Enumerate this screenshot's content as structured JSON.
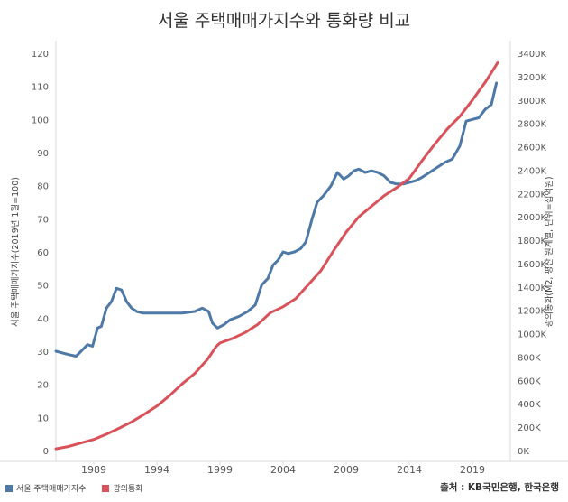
{
  "chart_data": {
    "type": "line",
    "title": "서울 주택매매가지수와 통화량 비교",
    "ylabel_left": "서울 주택매매가지수(2019년 1월=100)",
    "ylabel_right": "광의통화(M2, 평잔 원계열, 단위=십억원)",
    "x_ticks": [
      "1989",
      "1994",
      "1999",
      "2004",
      "2009",
      "2014",
      "2019"
    ],
    "x_range": [
      1986,
      2022
    ],
    "y_left_ticks": [
      "0",
      "10",
      "20",
      "30",
      "40",
      "50",
      "60",
      "70",
      "80",
      "90",
      "100",
      "110",
      "120"
    ],
    "y_left_range": [
      0,
      120
    ],
    "y_right_ticks": [
      "0K",
      "200K",
      "400K",
      "600K",
      "800K",
      "1000K",
      "1200K",
      "1400K",
      "1600K",
      "1800K",
      "2000K",
      "2200K",
      "2400K",
      "2600K",
      "2800K",
      "3000K",
      "3200K",
      "3400K"
    ],
    "y_right_range": [
      0,
      3400000
    ],
    "series": [
      {
        "name": "서울 주택매매가지수",
        "axis": "left",
        "color": "#4e79a7",
        "x": [
          1986.0,
          1987.0,
          1987.6,
          1988.0,
          1988.5,
          1988.9,
          1989.3,
          1989.6,
          1990.0,
          1990.4,
          1990.8,
          1991.2,
          1991.6,
          1992.0,
          1992.4,
          1992.9,
          1993.5,
          1994.2,
          1995.0,
          1996.0,
          1997.0,
          1997.6,
          1998.1,
          1998.4,
          1998.8,
          1999.3,
          1999.8,
          2000.5,
          2001.2,
          2001.8,
          2002.3,
          2002.8,
          2003.2,
          2003.6,
          2004.0,
          2004.4,
          2004.9,
          2005.4,
          2005.8,
          2006.3,
          2006.7,
          2007.2,
          2007.8,
          2008.3,
          2008.8,
          2009.2,
          2009.6,
          2010.0,
          2010.5,
          2011.0,
          2011.5,
          2012.0,
          2012.5,
          2013.0,
          2013.5,
          2014.0,
          2014.5,
          2015.0,
          2015.6,
          2016.2,
          2016.8,
          2017.4,
          2018.0,
          2018.5,
          2019.0,
          2019.5,
          2020.0,
          2020.5,
          2020.9
        ],
        "y": [
          30.0,
          29.0,
          28.5,
          30.0,
          32.0,
          31.5,
          37.0,
          37.5,
          43.0,
          45.0,
          49.0,
          48.5,
          45.0,
          43.0,
          42.0,
          41.5,
          41.5,
          41.5,
          41.5,
          41.5,
          42.0,
          43.0,
          42.0,
          38.5,
          37.0,
          38.0,
          39.5,
          40.5,
          42.0,
          44.0,
          50.0,
          52.0,
          56.0,
          57.5,
          60.0,
          59.5,
          60.0,
          61.0,
          63.0,
          70.0,
          75.0,
          77.0,
          80.0,
          84.0,
          82.0,
          83.0,
          84.5,
          85.0,
          84.0,
          84.5,
          84.0,
          83.0,
          81.0,
          80.5,
          80.5,
          81.0,
          81.5,
          82.5,
          84.0,
          85.5,
          87.0,
          88.0,
          92.0,
          99.5,
          100.0,
          100.5,
          103.0,
          104.5,
          111.0
        ]
      },
      {
        "name": "광의통화",
        "axis": "right",
        "color": "#d9525a",
        "x": [
          1986.0,
          1987.0,
          1988.0,
          1989.0,
          1990.0,
          1991.0,
          1992.0,
          1993.0,
          1994.0,
          1995.0,
          1996.0,
          1997.0,
          1998.0,
          1998.7,
          1999.0,
          2000.0,
          2001.0,
          2002.0,
          2003.0,
          2004.0,
          2005.0,
          2006.0,
          2007.0,
          2008.0,
          2009.0,
          2010.0,
          2011.0,
          2012.0,
          2013.0,
          2014.0,
          2015.0,
          2016.0,
          2017.0,
          2018.0,
          2019.0,
          2020.0,
          2021.0
        ],
        "y": [
          15000,
          35000,
          65000,
          95000,
          140000,
          190000,
          245000,
          310000,
          380000,
          470000,
          570000,
          660000,
          780000,
          890000,
          920000,
          960000,
          1010000,
          1080000,
          1180000,
          1230000,
          1300000,
          1420000,
          1540000,
          1710000,
          1870000,
          2000000,
          2090000,
          2180000,
          2250000,
          2330000,
          2480000,
          2620000,
          2750000,
          2860000,
          3000000,
          3150000,
          3320000
        ]
      }
    ]
  },
  "legend": [
    {
      "label": "서울 주택매매가지수",
      "color": "#4e79a7"
    },
    {
      "label": "광의통화",
      "color": "#d9525a"
    }
  ],
  "source": "출처 : KB국민은행, 한국은행"
}
